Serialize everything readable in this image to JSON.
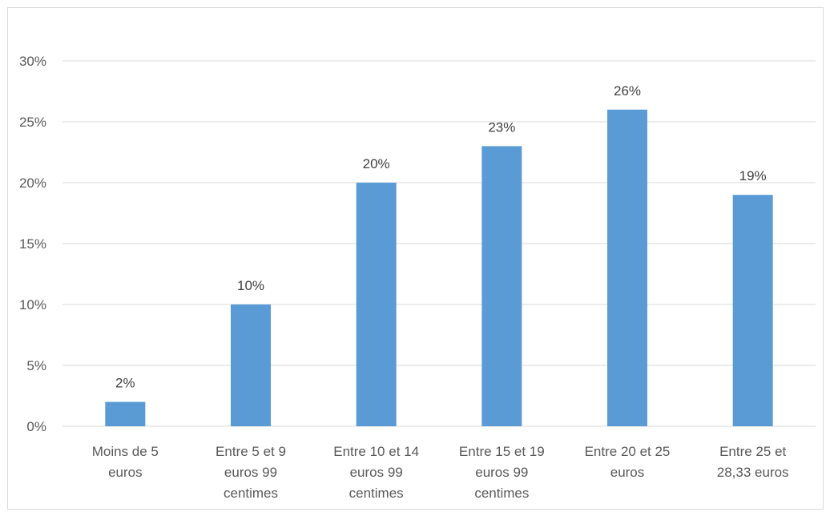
{
  "chart_data": {
    "type": "bar",
    "categories": [
      [
        "Moins de 5",
        "euros"
      ],
      [
        "Entre 5 et 9",
        "euros 99",
        "centimes"
      ],
      [
        "Entre 10 et 14",
        "euros 99",
        "centimes"
      ],
      [
        "Entre 15 et 19",
        "euros 99",
        "centimes"
      ],
      [
        "Entre 20 et 25",
        "euros"
      ],
      [
        "Entre 25 et",
        "28,33 euros"
      ]
    ],
    "values": [
      2,
      10,
      20,
      23,
      26,
      19
    ],
    "data_labels": [
      "2%",
      "10%",
      "20%",
      "23%",
      "26%",
      "19%"
    ],
    "y_ticks": [
      "0%",
      "5%",
      "10%",
      "15%",
      "20%",
      "25%",
      "30%"
    ],
    "ylim": [
      0,
      30
    ],
    "grid": true,
    "legend": "none",
    "colors": {
      "bar": "#5b9bd5",
      "grid": "#d9d9d9"
    }
  }
}
